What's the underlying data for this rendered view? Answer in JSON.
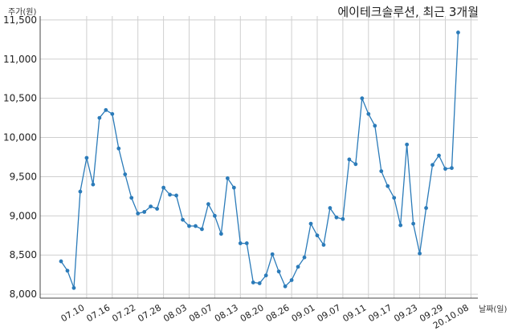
{
  "chart_data": {
    "type": "line",
    "title": "에이테크솔루션, 최근 3개월",
    "ylabel": "주가(원)",
    "xlabel": "날짜(일)",
    "ylim": [
      7950,
      11550
    ],
    "yticks": [
      "8,000",
      "8,500",
      "9,000",
      "9,500",
      "10,000",
      "10,500",
      "11,000",
      "11,500"
    ],
    "ytick_values": [
      8000,
      8500,
      9000,
      9500,
      10000,
      10500,
      11000,
      11500
    ],
    "xticks": [
      "07.10",
      "07.16",
      "07.22",
      "07.28",
      "08.03",
      "08.07",
      "08.13",
      "08.20",
      "08.26",
      "09.01",
      "09.07",
      "09.11",
      "09.17",
      "09.23",
      "09.29",
      "20.10.08"
    ],
    "xtick_positions": [
      4,
      8,
      12,
      16,
      20,
      24,
      28,
      32,
      36,
      40,
      44,
      48,
      52,
      56,
      60,
      64
    ],
    "grid": true,
    "color": "#2b7bb9",
    "series": [
      {
        "values": [
          8420,
          8300,
          8080,
          9310,
          9740,
          9400,
          10250,
          10350,
          10300,
          9860,
          9530,
          9230,
          9030,
          9050,
          9120,
          9090,
          9360,
          9270,
          9260,
          8950,
          8870,
          8870,
          8830,
          9150,
          9000,
          8770,
          9480,
          9360,
          8650,
          8650,
          8150,
          8140,
          8240,
          8510,
          8290,
          8100,
          8180,
          8350,
          8470,
          8900,
          8750,
          8630,
          9100,
          8980,
          8960,
          9720,
          9660,
          10500,
          10300,
          10150,
          9570,
          9380,
          9230,
          8880,
          9910,
          8900,
          8520,
          9100,
          9650,
          9770,
          9600,
          9610,
          11340
        ]
      }
    ]
  }
}
